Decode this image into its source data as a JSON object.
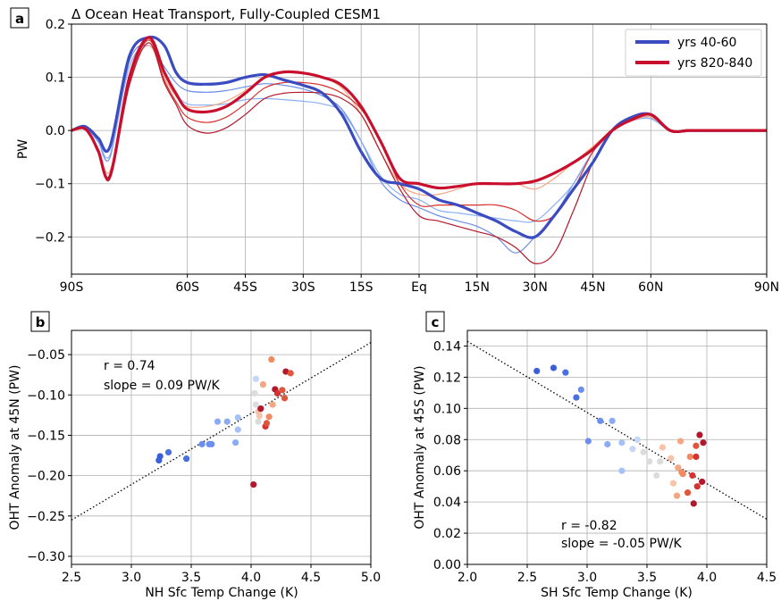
{
  "chart_data": [
    {
      "panel_label": "a",
      "type": "line",
      "title": "Δ Ocean Heat Transport, Fully-Coupled CESM1",
      "ylabel": "PW",
      "xlabel": "",
      "xlim": [
        -90,
        90
      ],
      "ylim": [
        -0.27,
        0.2
      ],
      "x_ticks": [
        -90,
        -60,
        -45,
        -30,
        -15,
        0,
        15,
        30,
        45,
        60,
        90
      ],
      "x_tick_labels": [
        "90S",
        "60S",
        "45S",
        "30S",
        "15S",
        "Eq",
        "15N",
        "30N",
        "45N",
        "60N",
        "90N"
      ],
      "y_ticks": [
        -0.2,
        -0.1,
        0.0,
        0.1,
        0.2
      ],
      "y_tick_labels": [
        "−0.2",
        "−0.1",
        "0.0",
        "0.1",
        "0.2"
      ],
      "grid": true,
      "legend_position": "top-right",
      "legend": [
        {
          "label": "yrs 40-60",
          "color": "#3a4cc0"
        },
        {
          "label": "yrs 820-840",
          "color": "#c8102e"
        }
      ],
      "x": [
        -90,
        -87,
        -85,
        -83,
        -80,
        -75,
        -70,
        -66,
        -63,
        -60,
        -55,
        -50,
        -45,
        -40,
        -35,
        -30,
        -25,
        -20,
        -15,
        -10,
        -5,
        0,
        5,
        10,
        15,
        20,
        25,
        30,
        35,
        40,
        45,
        50,
        55,
        60,
        65,
        70,
        75,
        80,
        85,
        88,
        90
      ],
      "series": [
        {
          "role": "bold",
          "color": "#3a4cc0",
          "values": [
            0.0,
            0.008,
            0.0,
            -0.015,
            -0.03,
            0.14,
            0.175,
            0.16,
            0.11,
            0.09,
            0.087,
            0.09,
            0.1,
            0.105,
            0.095,
            0.085,
            0.07,
            0.03,
            -0.04,
            -0.09,
            -0.1,
            -0.11,
            -0.13,
            -0.14,
            -0.155,
            -0.17,
            -0.19,
            -0.2,
            -0.16,
            -0.11,
            -0.06,
            0.0,
            0.025,
            0.03,
            0.0,
            0.0,
            0.0,
            0.0,
            0.0,
            0.0,
            0.0
          ]
        },
        {
          "role": "bold",
          "color": "#c8102e",
          "values": [
            0.0,
            0.005,
            -0.01,
            -0.04,
            -0.085,
            0.1,
            0.175,
            0.11,
            0.07,
            0.04,
            0.035,
            0.045,
            0.07,
            0.1,
            0.11,
            0.108,
            0.1,
            0.085,
            0.045,
            -0.02,
            -0.09,
            -0.1,
            -0.108,
            -0.105,
            -0.1,
            -0.1,
            -0.1,
            -0.095,
            -0.08,
            -0.06,
            -0.035,
            0.0,
            0.02,
            0.03,
            0.0,
            0.0,
            0.0,
            0.0,
            0.0,
            0.0,
            0.0
          ]
        },
        {
          "role": "thin",
          "color": "#6a8ee8",
          "values": [
            0.0,
            0.006,
            -0.004,
            -0.022,
            -0.05,
            0.13,
            0.16,
            0.12,
            0.09,
            0.075,
            0.072,
            0.075,
            0.082,
            0.088,
            0.085,
            0.078,
            0.065,
            0.04,
            -0.02,
            -0.095,
            -0.13,
            -0.145,
            -0.16,
            -0.17,
            -0.18,
            -0.2,
            -0.23,
            -0.2,
            -0.16,
            -0.1,
            -0.04,
            0.0,
            0.02,
            0.025,
            0.0,
            0.0,
            0.0,
            0.0,
            0.0,
            0.0,
            0.0
          ]
        },
        {
          "role": "thin",
          "color": "#8ab0f5",
          "values": [
            0.0,
            0.006,
            -0.004,
            -0.02,
            -0.045,
            0.12,
            0.16,
            0.11,
            0.07,
            0.05,
            0.048,
            0.05,
            0.058,
            0.06,
            0.058,
            0.055,
            0.05,
            0.035,
            -0.02,
            -0.085,
            -0.12,
            -0.13,
            -0.15,
            -0.155,
            -0.16,
            -0.165,
            -0.17,
            -0.17,
            -0.14,
            -0.1,
            -0.04,
            0.0,
            0.018,
            0.022,
            0.0,
            0.0,
            0.0,
            0.0,
            0.0,
            0.0,
            0.0
          ]
        },
        {
          "role": "thin",
          "color": "#f4a582",
          "values": [
            0.0,
            0.005,
            -0.008,
            -0.035,
            -0.075,
            0.1,
            0.16,
            0.1,
            0.065,
            0.045,
            0.045,
            0.055,
            0.075,
            0.1,
            0.11,
            0.108,
            0.1,
            0.08,
            0.03,
            -0.04,
            -0.1,
            -0.12,
            -0.12,
            -0.11,
            -0.1,
            -0.1,
            -0.1,
            -0.11,
            -0.09,
            -0.06,
            -0.03,
            0.0,
            0.018,
            0.025,
            0.0,
            0.0,
            0.0,
            0.0,
            0.0,
            0.0,
            0.0
          ]
        },
        {
          "role": "thin",
          "color": "#d6322f",
          "values": [
            0.0,
            0.005,
            -0.01,
            -0.04,
            -0.09,
            0.09,
            0.17,
            0.095,
            0.055,
            0.025,
            0.015,
            0.025,
            0.05,
            0.08,
            0.09,
            0.09,
            0.085,
            0.07,
            0.04,
            -0.02,
            -0.1,
            -0.14,
            -0.14,
            -0.14,
            -0.14,
            -0.14,
            -0.15,
            -0.17,
            -0.16,
            -0.11,
            -0.04,
            0.0,
            0.02,
            0.03,
            0.0,
            0.0,
            0.0,
            0.0,
            0.0,
            0.0,
            0.0
          ]
        },
        {
          "role": "thin",
          "color": "#b2182b",
          "values": [
            0.0,
            0.005,
            -0.01,
            -0.04,
            -0.09,
            0.085,
            0.165,
            0.09,
            0.05,
            0.01,
            -0.005,
            0.005,
            0.03,
            0.06,
            0.07,
            0.072,
            0.07,
            0.06,
            0.03,
            -0.04,
            -0.11,
            -0.16,
            -0.17,
            -0.18,
            -0.19,
            -0.2,
            -0.22,
            -0.25,
            -0.23,
            -0.15,
            -0.06,
            0.0,
            0.02,
            0.03,
            0.0,
            0.0,
            0.0,
            0.0,
            0.0,
            0.0,
            0.0
          ]
        }
      ]
    },
    {
      "panel_label": "b",
      "type": "scatter",
      "xlabel": "NH Sfc Temp Change (K)",
      "ylabel": "OHT Anomaly at 45N (PW)",
      "xlim": [
        2.5,
        5.0
      ],
      "ylim": [
        -0.31,
        -0.02
      ],
      "x_ticks": [
        2.5,
        3.0,
        3.5,
        4.0,
        4.5,
        5.0
      ],
      "x_tick_labels": [
        "2.5",
        "3.0",
        "3.5",
        "4.0",
        "4.5",
        "5.0"
      ],
      "y_ticks": [
        -0.3,
        -0.25,
        -0.2,
        -0.15,
        -0.1,
        -0.05
      ],
      "y_tick_labels": [
        "−0.30",
        "−0.25",
        "−0.20",
        "−0.15",
        "−0.10",
        "−0.05"
      ],
      "grid": true,
      "annotations": [
        "r = 0.74",
        "slope = 0.09 PW/K"
      ],
      "fit_line": {
        "x": [
          2.5,
          5.0
        ],
        "y": [
          -0.255,
          -0.035
        ]
      },
      "points": [
        {
          "x": 3.23,
          "y": -0.181,
          "color": "#3b5fd9"
        },
        {
          "x": 3.24,
          "y": -0.176,
          "color": "#3b5fd9"
        },
        {
          "x": 3.31,
          "y": -0.171,
          "color": "#4a6fe3"
        },
        {
          "x": 3.46,
          "y": -0.179,
          "color": "#4a6fe3"
        },
        {
          "x": 3.59,
          "y": -0.161,
          "color": "#6b8ff0"
        },
        {
          "x": 3.65,
          "y": -0.161,
          "color": "#6b8ff0"
        },
        {
          "x": 3.67,
          "y": -0.161,
          "color": "#6b8ff0"
        },
        {
          "x": 3.72,
          "y": -0.133,
          "color": "#8aaaf5"
        },
        {
          "x": 3.8,
          "y": -0.133,
          "color": "#8aaaf5"
        },
        {
          "x": 3.87,
          "y": -0.159,
          "color": "#8aaaf5"
        },
        {
          "x": 3.89,
          "y": -0.143,
          "color": "#a6c1f7"
        },
        {
          "x": 3.89,
          "y": -0.128,
          "color": "#a6c1f7"
        },
        {
          "x": 4.02,
          "y": -0.211,
          "color": "#b2182b"
        },
        {
          "x": 4.03,
          "y": -0.098,
          "color": "#dcdcdc"
        },
        {
          "x": 4.04,
          "y": -0.08,
          "color": "#c6d6f5"
        },
        {
          "x": 4.04,
          "y": -0.112,
          "color": "#dcdcdc"
        },
        {
          "x": 4.06,
          "y": -0.121,
          "color": "#f7c4aa"
        },
        {
          "x": 4.06,
          "y": -0.133,
          "color": "#dcdcdc"
        },
        {
          "x": 4.07,
          "y": -0.126,
          "color": "#f7c4aa"
        },
        {
          "x": 4.08,
          "y": -0.117,
          "color": "#b2182b"
        },
        {
          "x": 4.1,
          "y": -0.087,
          "color": "#f4a582"
        },
        {
          "x": 4.12,
          "y": -0.139,
          "color": "#d6322f"
        },
        {
          "x": 4.13,
          "y": -0.135,
          "color": "#e0553c"
        },
        {
          "x": 4.15,
          "y": -0.127,
          "color": "#f08a63"
        },
        {
          "x": 4.17,
          "y": -0.056,
          "color": "#f08a63"
        },
        {
          "x": 4.18,
          "y": -0.112,
          "color": "#f4a582"
        },
        {
          "x": 4.2,
          "y": -0.093,
          "color": "#b2182b"
        },
        {
          "x": 4.22,
          "y": -0.098,
          "color": "#d6322f"
        },
        {
          "x": 4.26,
          "y": -0.094,
          "color": "#e0553c"
        },
        {
          "x": 4.28,
          "y": -0.104,
          "color": "#e0553c"
        },
        {
          "x": 4.29,
          "y": -0.071,
          "color": "#b2182b"
        },
        {
          "x": 4.33,
          "y": -0.073,
          "color": "#e0553c"
        }
      ]
    },
    {
      "panel_label": "c",
      "type": "scatter",
      "xlabel": "SH Sfc Temp Change (K)",
      "ylabel": "OHT Anomaly at 45S (PW)",
      "xlim": [
        2.0,
        4.5
      ],
      "ylim": [
        0.0,
        0.15
      ],
      "x_ticks": [
        2.0,
        2.5,
        3.0,
        3.5,
        4.0,
        4.5
      ],
      "x_tick_labels": [
        "2.0",
        "2.5",
        "3.0",
        "3.5",
        "4.0",
        "4.5"
      ],
      "y_ticks": [
        0.0,
        0.02,
        0.04,
        0.06,
        0.08,
        0.1,
        0.12,
        0.14
      ],
      "y_tick_labels": [
        "0.00",
        "0.02",
        "0.04",
        "0.06",
        "0.08",
        "0.10",
        "0.12",
        "0.14"
      ],
      "grid": true,
      "annotations": [
        "r = -0.82",
        "slope = -0.05 PW/K"
      ],
      "fit_line": {
        "x": [
          2.0,
          4.5
        ],
        "y": [
          0.143,
          0.029
        ]
      },
      "points": [
        {
          "x": 2.58,
          "y": 0.124,
          "color": "#3b5fd9"
        },
        {
          "x": 2.72,
          "y": 0.126,
          "color": "#3b5fd9"
        },
        {
          "x": 2.82,
          "y": 0.123,
          "color": "#4a6fe3"
        },
        {
          "x": 2.91,
          "y": 0.107,
          "color": "#4a6fe3"
        },
        {
          "x": 2.95,
          "y": 0.112,
          "color": "#6b8ff0"
        },
        {
          "x": 3.01,
          "y": 0.079,
          "color": "#6b8ff0"
        },
        {
          "x": 3.11,
          "y": 0.092,
          "color": "#6b8ff0"
        },
        {
          "x": 3.17,
          "y": 0.077,
          "color": "#8aaaf5"
        },
        {
          "x": 3.21,
          "y": 0.092,
          "color": "#8aaaf5"
        },
        {
          "x": 3.29,
          "y": 0.078,
          "color": "#a6c1f7"
        },
        {
          "x": 3.29,
          "y": 0.06,
          "color": "#a6c1f7"
        },
        {
          "x": 3.38,
          "y": 0.074,
          "color": "#c6d6f5"
        },
        {
          "x": 3.42,
          "y": 0.08,
          "color": "#c6d6f5"
        },
        {
          "x": 3.47,
          "y": 0.072,
          "color": "#dcdcdc"
        },
        {
          "x": 3.52,
          "y": 0.066,
          "color": "#dcdcdc"
        },
        {
          "x": 3.58,
          "y": 0.057,
          "color": "#dcdcdc"
        },
        {
          "x": 3.61,
          "y": 0.066,
          "color": "#dcdcdc"
        },
        {
          "x": 3.63,
          "y": 0.075,
          "color": "#f7c4aa"
        },
        {
          "x": 3.7,
          "y": 0.068,
          "color": "#f7c4aa"
        },
        {
          "x": 3.72,
          "y": 0.052,
          "color": "#f7c4aa"
        },
        {
          "x": 3.75,
          "y": 0.044,
          "color": "#f4a582"
        },
        {
          "x": 3.76,
          "y": 0.062,
          "color": "#f4a582"
        },
        {
          "x": 3.78,
          "y": 0.079,
          "color": "#f4a582"
        },
        {
          "x": 3.79,
          "y": 0.059,
          "color": "#f08a63"
        },
        {
          "x": 3.8,
          "y": 0.058,
          "color": "#f08a63"
        },
        {
          "x": 3.84,
          "y": 0.046,
          "color": "#e0553c"
        },
        {
          "x": 3.86,
          "y": 0.069,
          "color": "#f08a63"
        },
        {
          "x": 3.88,
          "y": 0.057,
          "color": "#d6322f"
        },
        {
          "x": 3.89,
          "y": 0.039,
          "color": "#b2182b"
        },
        {
          "x": 3.91,
          "y": 0.069,
          "color": "#d6322f"
        },
        {
          "x": 3.91,
          "y": 0.076,
          "color": "#e0553c"
        },
        {
          "x": 3.92,
          "y": 0.05,
          "color": "#d6322f"
        },
        {
          "x": 3.94,
          "y": 0.083,
          "color": "#b2182b"
        },
        {
          "x": 3.96,
          "y": 0.053,
          "color": "#b2182b"
        },
        {
          "x": 3.97,
          "y": 0.078,
          "color": "#b2182b"
        }
      ]
    }
  ]
}
